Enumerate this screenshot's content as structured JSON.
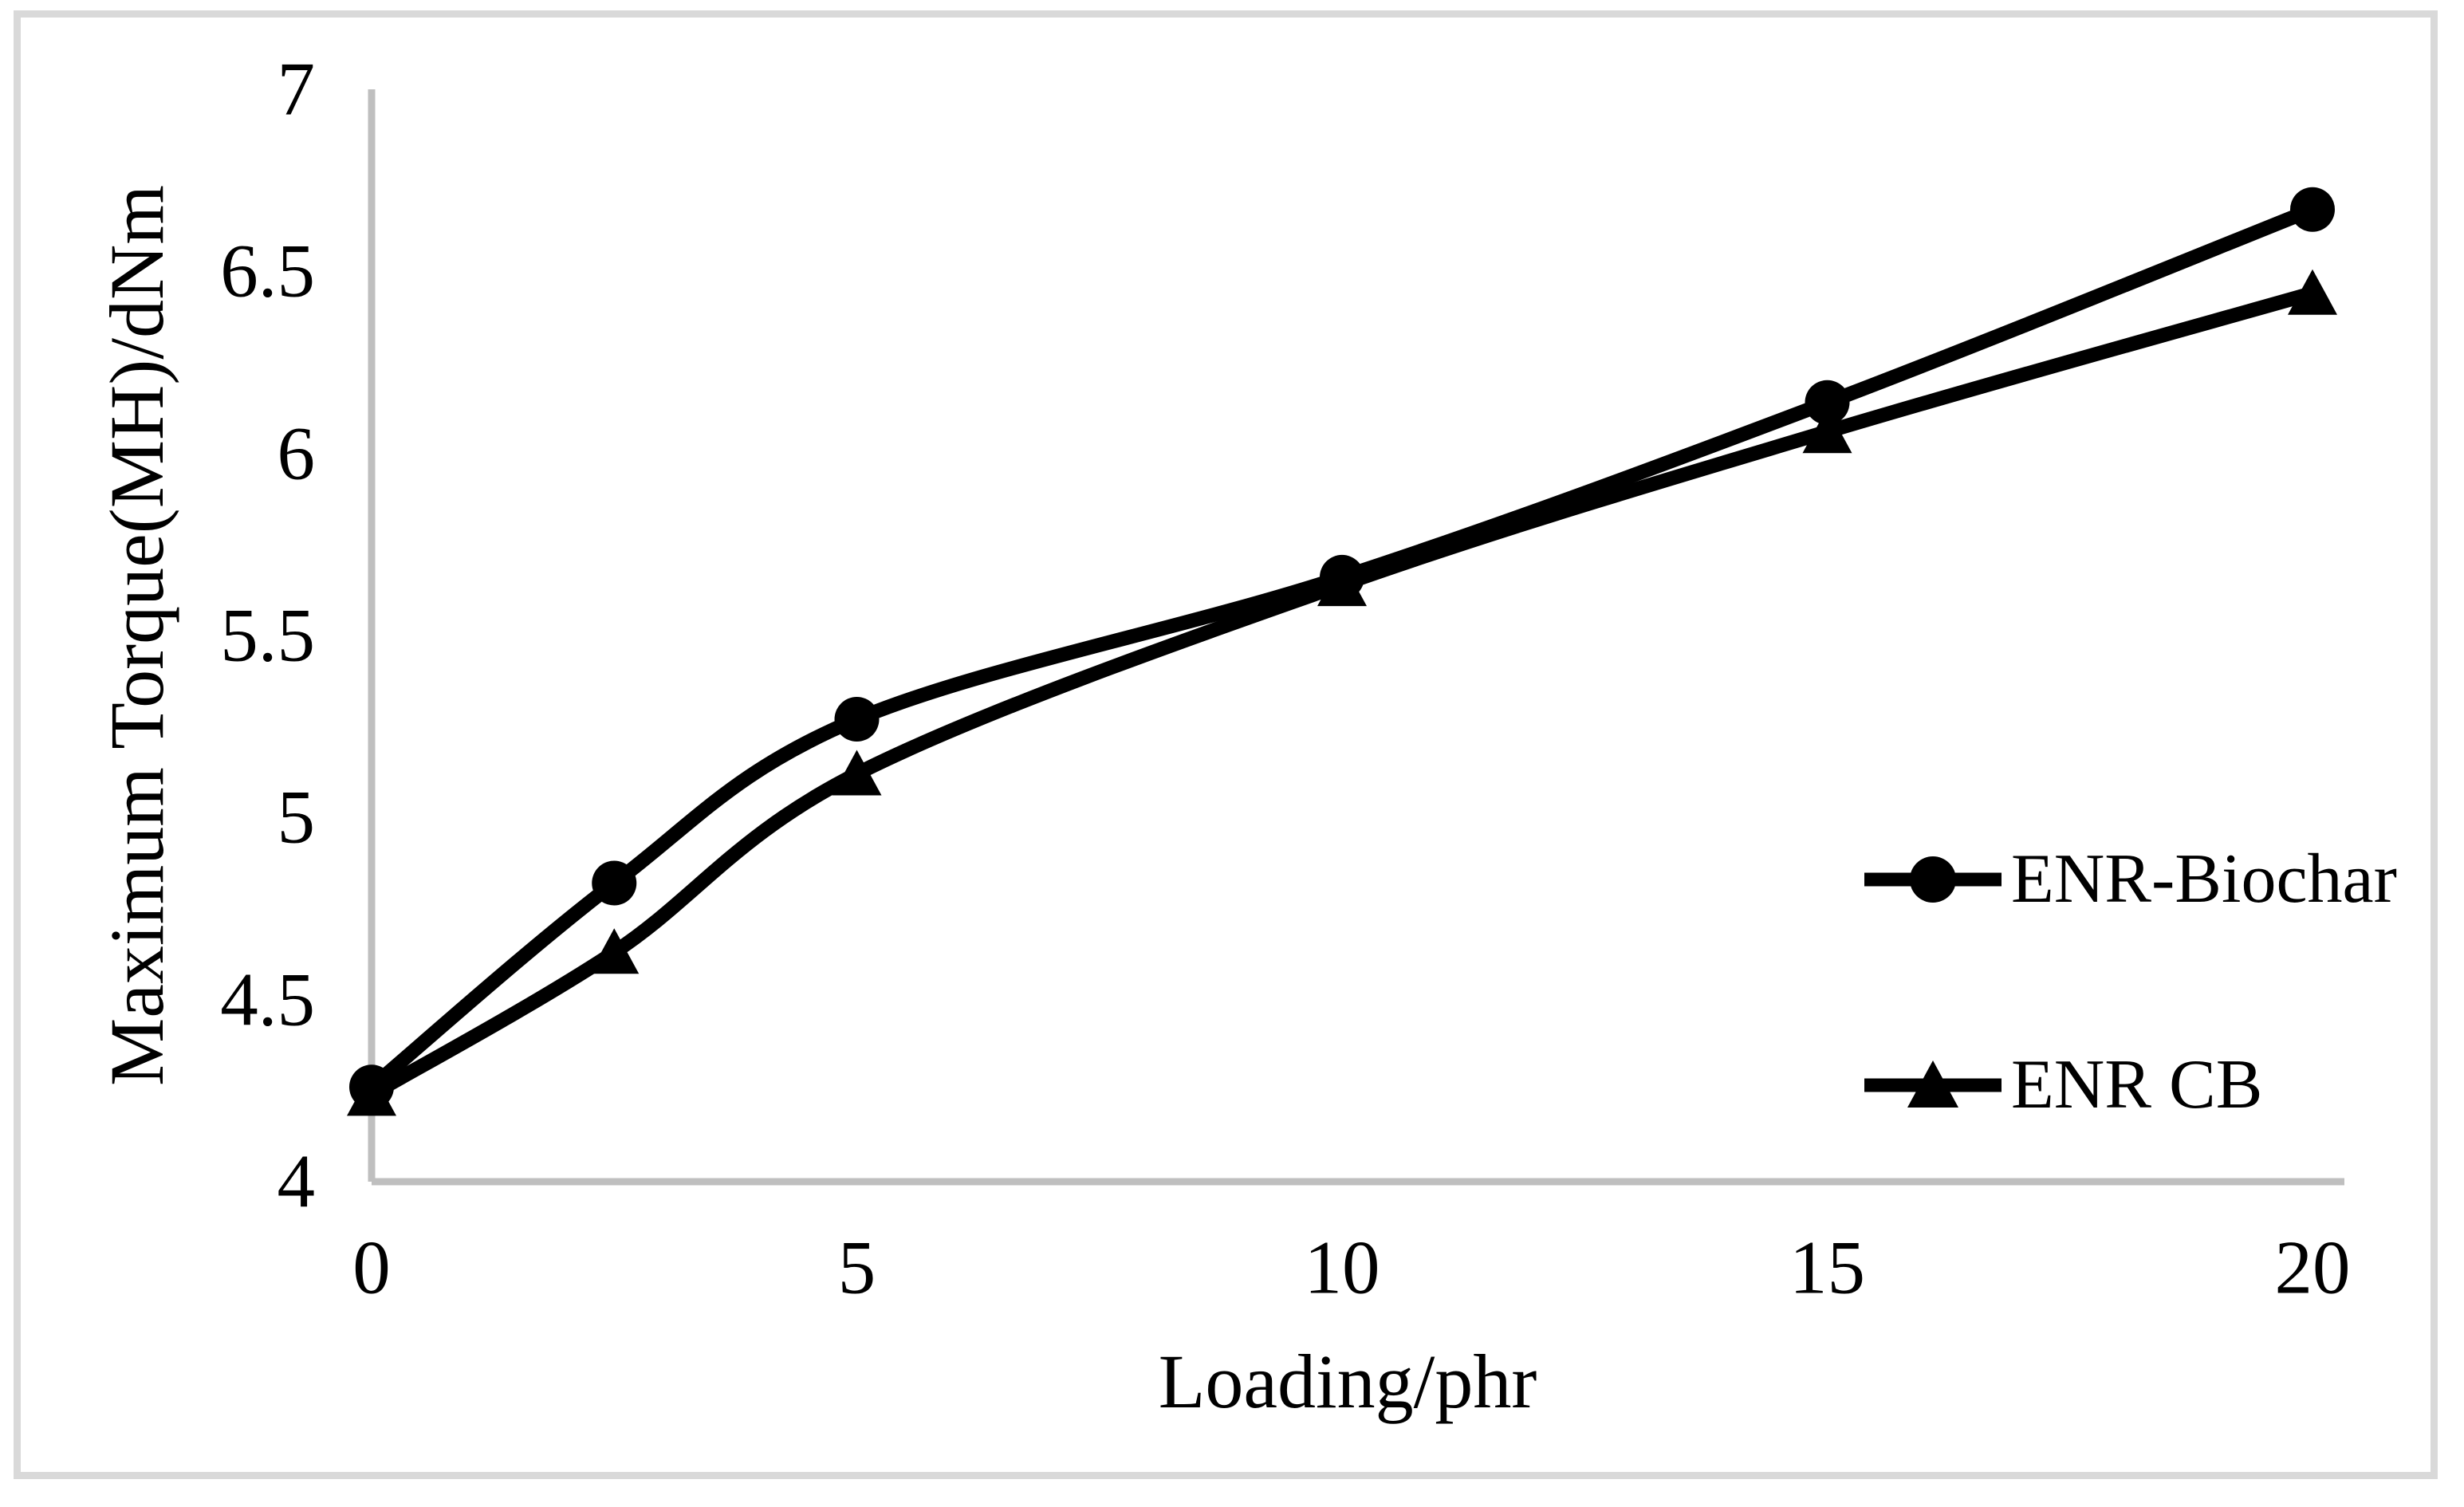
{
  "chart_data": {
    "type": "line",
    "title": "",
    "xlabel": "Loading/phr",
    "ylabel": "Maximum Torque(MH)/dNm",
    "xlim": [
      0,
      20
    ],
    "ylim": [
      4,
      7
    ],
    "grid": false,
    "legend_position": "middle-right",
    "xticks": {
      "values": [
        0,
        5,
        10,
        15,
        20
      ],
      "labels": [
        "0",
        "5",
        "10",
        "15",
        "20"
      ]
    },
    "yticks": {
      "values": [
        4,
        4.5,
        5,
        5.5,
        6,
        6.5,
        7
      ],
      "labels": [
        "4",
        "4.5",
        "5",
        "5.5",
        "6",
        "6.5",
        "7"
      ]
    },
    "x": [
      0,
      2.5,
      5,
      10,
      15,
      20
    ],
    "series": [
      {
        "name": "ENR-Biochar",
        "marker": "circle",
        "line_style": "smooth",
        "values": [
          4.26,
          4.82,
          5.27,
          5.66,
          6.14,
          6.67
        ]
      },
      {
        "name": "ENR CB",
        "marker": "triangle",
        "line_style": "smooth",
        "values": [
          4.24,
          4.63,
          5.12,
          5.64,
          6.06,
          6.44
        ]
      }
    ],
    "colors": {
      "series": "#000000",
      "axis_line": "#BFBFBF",
      "figure_border": "#D9D9D9",
      "background": "#FFFFFF",
      "text": "#000000"
    }
  }
}
